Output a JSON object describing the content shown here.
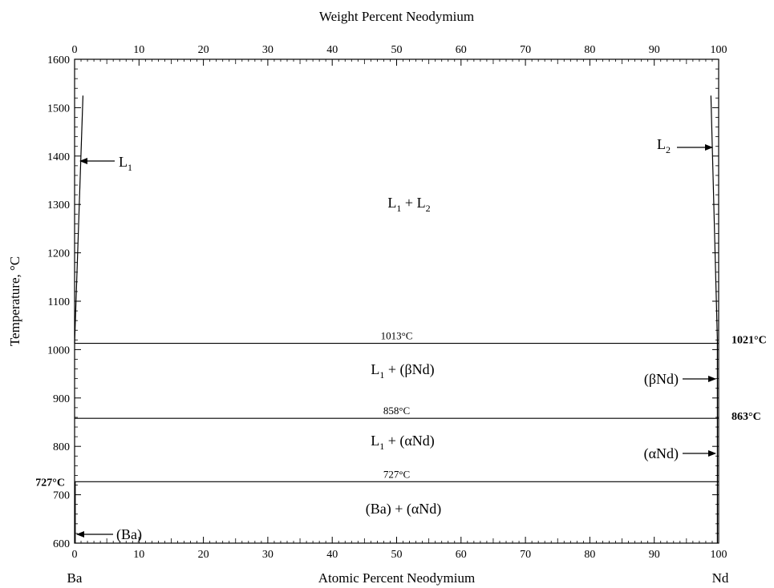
{
  "chart_data": {
    "type": "line",
    "x_axis": {
      "label": "Atomic Percent Neodymium",
      "range": [
        0,
        100
      ],
      "ticks": [
        0,
        10,
        20,
        30,
        40,
        50,
        60,
        70,
        80,
        90,
        100
      ],
      "left_element": "Ba",
      "right_element": "Nd"
    },
    "top_axis": {
      "label": "Weight Percent Neodymium",
      "ticks": [
        0,
        10,
        20,
        30,
        40,
        50,
        60,
        70,
        80,
        90,
        100
      ]
    },
    "y_axis": {
      "label": "Temperature, °C",
      "range": [
        600,
        1600
      ],
      "ticks": [
        600,
        700,
        800,
        900,
        1000,
        1100,
        1200,
        1300,
        1400,
        1500,
        1600
      ]
    },
    "isotherms": [
      {
        "T": 1013,
        "label": "1013°C"
      },
      {
        "T": 858,
        "label": "858°C"
      },
      {
        "T": 727,
        "label": "727°C"
      }
    ],
    "boundaries": [
      {
        "name": "L1 boundary",
        "points": [
          [
            0,
            1013
          ],
          [
            1.3,
            1525
          ]
        ]
      },
      {
        "name": "L2 boundary",
        "points": [
          [
            99.8,
            1021
          ],
          [
            98.8,
            1525
          ]
        ]
      },
      {
        "name": "Ba solidus",
        "points": [
          [
            0.1,
            727
          ],
          [
            0.1,
            600
          ]
        ]
      },
      {
        "name": "Nd solvus",
        "points": [
          [
            99.8,
            1021
          ],
          [
            99.8,
            600
          ]
        ]
      }
    ],
    "side_labels": [
      {
        "text": "1021°C",
        "T": 1021,
        "side": "right"
      },
      {
        "text": "863°C",
        "T": 863,
        "side": "right"
      },
      {
        "text": "727°C",
        "T": 727,
        "side": "left"
      }
    ],
    "phase_labels": [
      {
        "main": "L",
        "sub": "1",
        "x": 3.8,
        "T": 1385
      },
      {
        "main": "L",
        "sub": "2",
        "x": 90.8,
        "T": 1408
      },
      {
        "text": "L1 + L2",
        "x": 50,
        "T": 1300
      },
      {
        "text": "L1 + (βNd)",
        "x": 50,
        "T": 935
      },
      {
        "text": "L1 + (αNd)",
        "x": 50,
        "T": 780
      },
      {
        "text": "(Ba) + (αNd)",
        "x": 50,
        "T": 665
      },
      {
        "text": "(βNd)",
        "x": 90.5,
        "T": 935
      },
      {
        "text": "(αNd)",
        "x": 90.5,
        "T": 780
      },
      {
        "text": "(Ba)",
        "x": 3.8,
        "T": 660
      }
    ],
    "region_parts": {
      "l1l2": {
        "a": "L",
        "a_sub": "1",
        "plus": " + ",
        "b": "L",
        "b_sub": "2"
      },
      "l1beta": {
        "a": "L",
        "a_sub": "1",
        "rest": " + (βNd)"
      },
      "l1alpha": {
        "a": "L",
        "a_sub": "1",
        "rest": " + (αNd)"
      },
      "ba_alpha": "(Ba) + (αNd)",
      "beta_nd": "(βNd)",
      "alpha_nd": "(αNd)",
      "ba": "(Ba)"
    }
  }
}
